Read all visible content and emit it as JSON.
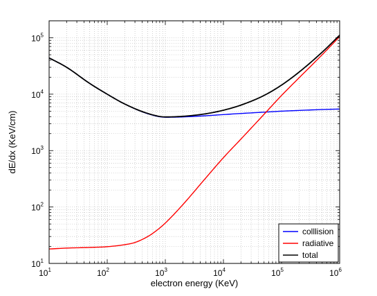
{
  "chart_data": {
    "type": "line",
    "title": "",
    "xlabel": "electron energy (KeV)",
    "ylabel": "dE/dx (KeV/cm)",
    "xscale": "log",
    "yscale": "log",
    "xlim": [
      10,
      1000000
    ],
    "ylim": [
      10,
      200000
    ],
    "x_ticks": [
      {
        "base": "10",
        "exp": "1"
      },
      {
        "base": "10",
        "exp": "2"
      },
      {
        "base": "10",
        "exp": "3"
      },
      {
        "base": "10",
        "exp": "4"
      },
      {
        "base": "10",
        "exp": "5"
      },
      {
        "base": "10",
        "exp": "6"
      }
    ],
    "y_ticks": [
      {
        "base": "10",
        "exp": "1"
      },
      {
        "base": "10",
        "exp": "2"
      },
      {
        "base": "10",
        "exp": "3"
      },
      {
        "base": "10",
        "exp": "4"
      },
      {
        "base": "10",
        "exp": "5"
      }
    ],
    "grid": true,
    "legend_position": "bottom-right",
    "series": [
      {
        "name": "colllision",
        "color": "#0000ff",
        "x": [
          10,
          20,
          50,
          100,
          200,
          500,
          1000,
          2000,
          5000,
          10000,
          20000,
          50000,
          100000,
          200000,
          500000,
          1000000
        ],
        "y": [
          44000,
          30000,
          15500,
          10000,
          6700,
          4500,
          3900,
          3950,
          4150,
          4350,
          4550,
          4800,
          5000,
          5150,
          5350,
          5450
        ]
      },
      {
        "name": "radiative",
        "color": "#ff0000",
        "x": [
          10,
          20,
          50,
          100,
          200,
          300,
          500,
          700,
          1000,
          2000,
          5000,
          10000,
          20000,
          50000,
          100000,
          200000,
          500000,
          1000000
        ],
        "y": [
          18,
          18.7,
          19.2,
          19.8,
          21.5,
          23.5,
          30,
          38,
          52,
          110,
          330,
          750,
          1600,
          4400,
          9500,
          19500,
          50000,
          105000
        ]
      },
      {
        "name": "total",
        "color": "#000000",
        "x": [
          10,
          20,
          50,
          100,
          200,
          500,
          1000,
          2000,
          5000,
          10000,
          20000,
          50000,
          100000,
          200000,
          500000,
          1000000
        ],
        "y": [
          44000,
          30000,
          15500,
          10000,
          6700,
          4550,
          3950,
          4050,
          4500,
          5200,
          6400,
          9500,
          14500,
          24600,
          55500,
          111000
        ]
      }
    ]
  }
}
